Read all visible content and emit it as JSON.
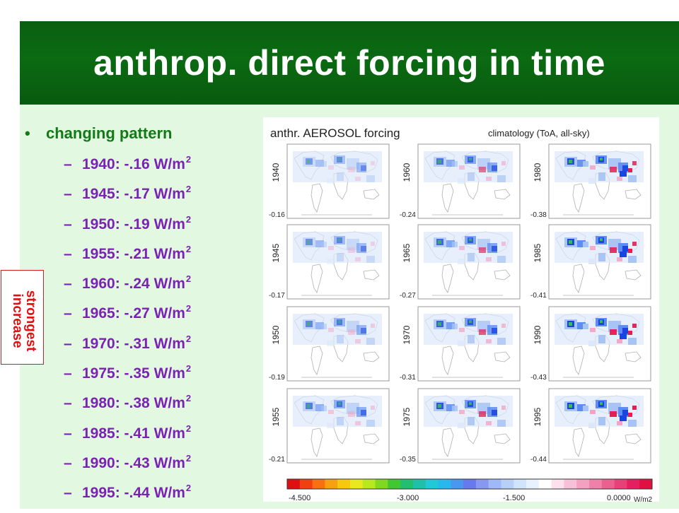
{
  "title": "anthrop. direct forcing in time",
  "bullet": {
    "symbol": "•",
    "label": "changing pattern"
  },
  "unit": "W/m",
  "unit_superscript": "2",
  "dash": "–",
  "forcing_list": [
    {
      "year": "1940",
      "value": "-.16"
    },
    {
      "year": "1945",
      "value": "-.17"
    },
    {
      "year": "1950",
      "value": "-.19"
    },
    {
      "year": "1955",
      "value": "-.21"
    },
    {
      "year": "1960",
      "value": "-.24"
    },
    {
      "year": "1965",
      "value": "-.27"
    },
    {
      "year": "1970",
      "value": "-.31"
    },
    {
      "year": "1975",
      "value": "-.35"
    },
    {
      "year": "1980",
      "value": "-.38"
    },
    {
      "year": "1985",
      "value": "-.41"
    },
    {
      "year": "1990",
      "value": "-.43"
    },
    {
      "year": "1995",
      "value": "-.44"
    }
  ],
  "annotation": {
    "line1": "strongest",
    "line2": "increase",
    "color": "#e01010"
  },
  "figure": {
    "title_left": "anthr. AEROSOL forcing",
    "title_right": "climatology (ToA, all-sky)",
    "panels": [
      {
        "year": "1940",
        "value": "-0.16"
      },
      {
        "year": "1945",
        "value": "-0.17"
      },
      {
        "year": "1950",
        "value": "-0.19"
      },
      {
        "year": "1955",
        "value": "-0.21"
      },
      {
        "year": "1960",
        "value": "-0.24"
      },
      {
        "year": "1965",
        "value": "-0.27"
      },
      {
        "year": "1970",
        "value": "-0.31"
      },
      {
        "year": "1975",
        "value": "-0.35"
      },
      {
        "year": "1980",
        "value": "-0.38"
      },
      {
        "year": "1985",
        "value": "-0.41"
      },
      {
        "year": "1990",
        "value": "-0.43"
      },
      {
        "year": "1995",
        "value": "-0.44"
      }
    ],
    "colorbar": {
      "tick_labels": [
        "-4.500",
        "-3.000",
        "-1.500",
        "0.0000"
      ],
      "unit_label": "W/m2",
      "colors": [
        "#e01010",
        "#f04010",
        "#f87010",
        "#f8a010",
        "#f8c810",
        "#e8e820",
        "#b8e820",
        "#80d820",
        "#40c830",
        "#20c070",
        "#20c0a8",
        "#20c8d8",
        "#28b8f0",
        "#4898f0",
        "#6878f0",
        "#8898f0",
        "#a0b8f8",
        "#b8d0f8",
        "#d0e4fc",
        "#e8f2fe",
        "#ffffff",
        "#fce0ec",
        "#f8c0d8",
        "#f4a0c0",
        "#f080a8",
        "#ec6090",
        "#e84078",
        "#e42060",
        "#e01040"
      ]
    },
    "colors": {
      "heavy": "#1a44e0",
      "moderate": "#5e8cf0",
      "light": "#a8c4f4",
      "faint": "#dce8fa",
      "positive": "#f2a4c4",
      "strong_positive": "#e21e52",
      "hotspot_core": "#38c04c"
    }
  }
}
